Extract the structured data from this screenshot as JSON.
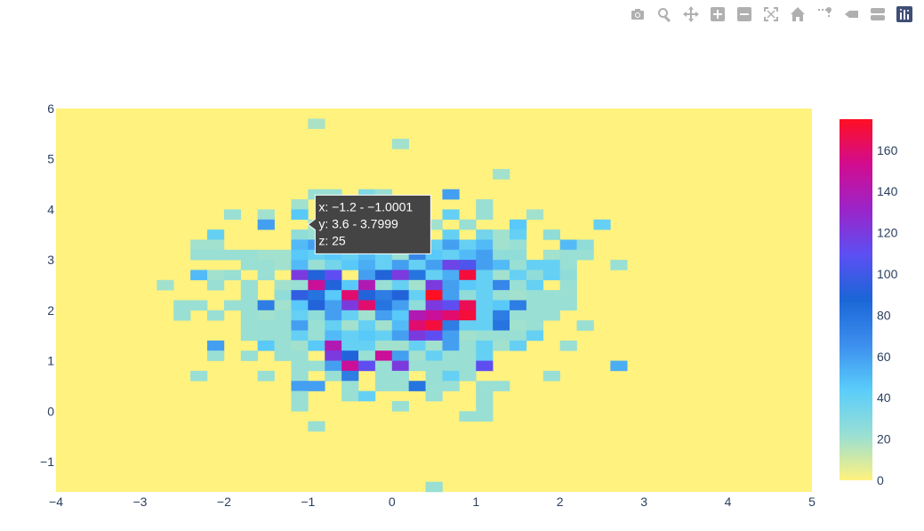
{
  "toolbar": {
    "buttons": [
      {
        "name": "camera-icon",
        "icon": "camera"
      },
      {
        "name": "zoom-icon",
        "icon": "zoom"
      },
      {
        "name": "pan-icon",
        "icon": "pan"
      },
      {
        "name": "zoom-in-icon",
        "icon": "zoom-in"
      },
      {
        "name": "zoom-out-icon",
        "icon": "zoom-out"
      },
      {
        "name": "autoscale-icon",
        "icon": "autoscale"
      },
      {
        "name": "home-icon",
        "icon": "home"
      },
      {
        "name": "spikelines-icon",
        "icon": "spikelines"
      },
      {
        "name": "hover-closest-icon",
        "icon": "hover-closest"
      },
      {
        "name": "hover-compare-icon",
        "icon": "hover-compare"
      },
      {
        "name": "plotly-logo-icon",
        "icon": "plotly-logo"
      }
    ]
  },
  "hover": {
    "x_line": "x: −1.2 - −1.0001",
    "y_line": "y: 3.6 - 3.7999",
    "z_line": "z: 25"
  },
  "chart_data": {
    "type": "heatmap",
    "subtype": "2d-histogram",
    "xlim": [
      -4,
      5
    ],
    "ylim": [
      -1.6,
      6
    ],
    "bin_size": {
      "x": 0.2,
      "y": 0.2
    },
    "x_ticks": [
      "−4",
      "−3",
      "−2",
      "−1",
      "0",
      "1",
      "2",
      "3",
      "4",
      "5"
    ],
    "y_ticks": [
      "−1",
      "0",
      "1",
      "2",
      "3",
      "4",
      "5",
      "6"
    ],
    "grid": false,
    "colorbar": {
      "range": [
        0,
        175
      ],
      "ticks": [
        "0",
        "20",
        "40",
        "60",
        "80",
        "100",
        "120",
        "140",
        "160"
      ],
      "colorscale": [
        "#fff27e",
        "#99dfd4",
        "#5acdfa",
        "#3d8fee",
        "#1a66d7",
        "#5c4ff3",
        "#9b24c8",
        "#d20c90",
        "#fe0f23"
      ]
    },
    "bins": [
      [
        -1.0,
        5.6,
        18
      ],
      [
        0.0,
        5.2,
        20
      ],
      [
        1.2,
        4.6,
        20
      ],
      [
        0.6,
        4.2,
        60
      ],
      [
        -1.0,
        4.2,
        22
      ],
      [
        -0.8,
        4.2,
        22
      ],
      [
        -0.4,
        4.2,
        30
      ],
      [
        -0.2,
        4.2,
        22
      ],
      [
        -1.2,
        4.0,
        20
      ],
      [
        -0.4,
        4.0,
        40
      ],
      [
        1.0,
        4.0,
        22
      ],
      [
        -2.0,
        3.8,
        22
      ],
      [
        -1.6,
        3.8,
        20
      ],
      [
        -1.2,
        3.8,
        45
      ],
      [
        0.6,
        3.8,
        40
      ],
      [
        1.0,
        3.8,
        22
      ],
      [
        1.6,
        3.8,
        20
      ],
      [
        -1.6,
        3.6,
        60
      ],
      [
        -1.0,
        3.6,
        20
      ],
      [
        -0.8,
        3.6,
        35
      ],
      [
        0.0,
        3.6,
        40
      ],
      [
        0.4,
        3.6,
        20
      ],
      [
        0.8,
        3.6,
        22
      ],
      [
        1.4,
        3.6,
        45
      ],
      [
        2.4,
        3.6,
        40
      ],
      [
        -2.2,
        3.4,
        40
      ],
      [
        -1.2,
        3.4,
        25
      ],
      [
        -1.0,
        3.4,
        22
      ],
      [
        -0.8,
        3.4,
        20
      ],
      [
        -0.6,
        3.4,
        20
      ],
      [
        -0.2,
        3.4,
        20
      ],
      [
        0.6,
        3.4,
        40
      ],
      [
        1.0,
        3.4,
        35
      ],
      [
        1.2,
        3.4,
        20
      ],
      [
        1.4,
        3.4,
        40
      ],
      [
        1.8,
        3.4,
        25
      ],
      [
        -2.4,
        3.2,
        20
      ],
      [
        -2.2,
        3.2,
        20
      ],
      [
        -1.2,
        3.2,
        50
      ],
      [
        -1.0,
        3.2,
        60
      ],
      [
        -0.8,
        3.2,
        50
      ],
      [
        -0.6,
        3.2,
        45
      ],
      [
        -0.4,
        3.2,
        70
      ],
      [
        -0.2,
        3.2,
        22
      ],
      [
        0.0,
        3.2,
        20
      ],
      [
        0.2,
        3.2,
        45
      ],
      [
        0.4,
        3.2,
        40
      ],
      [
        0.6,
        3.2,
        60
      ],
      [
        0.8,
        3.2,
        40
      ],
      [
        1.0,
        3.2,
        50
      ],
      [
        1.2,
        3.2,
        20
      ],
      [
        1.4,
        3.2,
        22
      ],
      [
        2.0,
        3.2,
        50
      ],
      [
        2.2,
        3.2,
        25
      ],
      [
        -2.4,
        3.0,
        22
      ],
      [
        -2.2,
        3.0,
        22
      ],
      [
        -2.0,
        3.0,
        22
      ],
      [
        -1.8,
        3.0,
        22
      ],
      [
        -1.6,
        3.0,
        20
      ],
      [
        -1.4,
        3.0,
        20
      ],
      [
        -1.2,
        3.0,
        45
      ],
      [
        -1.0,
        3.0,
        40
      ],
      [
        -0.8,
        3.0,
        45
      ],
      [
        -0.6,
        3.0,
        40
      ],
      [
        -0.4,
        3.0,
        50
      ],
      [
        -0.2,
        3.0,
        40
      ],
      [
        0.0,
        3.0,
        22
      ],
      [
        0.2,
        3.0,
        70
      ],
      [
        0.4,
        3.0,
        45
      ],
      [
        0.6,
        3.0,
        40
      ],
      [
        0.8,
        3.0,
        50
      ],
      [
        1.0,
        3.0,
        60
      ],
      [
        1.2,
        3.0,
        25
      ],
      [
        1.4,
        3.0,
        25
      ],
      [
        1.8,
        3.0,
        20
      ],
      [
        2.0,
        3.0,
        22
      ],
      [
        2.2,
        3.0,
        22
      ],
      [
        -1.8,
        2.8,
        22
      ],
      [
        -1.6,
        2.8,
        22
      ],
      [
        -1.4,
        2.8,
        20
      ],
      [
        -1.2,
        2.8,
        50
      ],
      [
        -1.0,
        2.8,
        22
      ],
      [
        -0.8,
        2.8,
        35
      ],
      [
        -0.6,
        2.8,
        45
      ],
      [
        -0.4,
        2.8,
        55
      ],
      [
        -0.2,
        2.8,
        40
      ],
      [
        0.0,
        2.8,
        60
      ],
      [
        0.2,
        2.8,
        40
      ],
      [
        0.4,
        2.8,
        60
      ],
      [
        0.6,
        2.8,
        115
      ],
      [
        0.8,
        2.8,
        105
      ],
      [
        1.0,
        2.8,
        60
      ],
      [
        1.2,
        2.8,
        50
      ],
      [
        1.4,
        2.8,
        22
      ],
      [
        1.6,
        2.8,
        40
      ],
      [
        1.8,
        2.8,
        40
      ],
      [
        2.0,
        2.8,
        22
      ],
      [
        2.6,
        2.8,
        22
      ],
      [
        -2.4,
        2.6,
        50
      ],
      [
        -2.2,
        2.6,
        20
      ],
      [
        -2.0,
        2.6,
        22
      ],
      [
        -1.6,
        2.6,
        22
      ],
      [
        -1.2,
        2.6,
        120
      ],
      [
        -1.0,
        2.6,
        90
      ],
      [
        -0.8,
        2.6,
        110
      ],
      [
        -0.4,
        2.6,
        60
      ],
      [
        -0.2,
        2.6,
        90
      ],
      [
        0.0,
        2.6,
        120
      ],
      [
        0.2,
        2.6,
        80
      ],
      [
        0.4,
        2.6,
        40
      ],
      [
        0.6,
        2.6,
        55
      ],
      [
        0.8,
        2.6,
        170
      ],
      [
        1.0,
        2.6,
        40
      ],
      [
        1.2,
        2.6,
        20
      ],
      [
        1.4,
        2.6,
        40
      ],
      [
        1.6,
        2.6,
        25
      ],
      [
        1.8,
        2.6,
        40
      ],
      [
        2.0,
        2.6,
        25
      ],
      [
        -2.8,
        2.4,
        20
      ],
      [
        -2.2,
        2.4,
        22
      ],
      [
        -1.8,
        2.4,
        22
      ],
      [
        -1.4,
        2.4,
        20
      ],
      [
        -1.2,
        2.4,
        22
      ],
      [
        -1.0,
        2.4,
        150
      ],
      [
        -0.8,
        2.4,
        90
      ],
      [
        -0.6,
        2.4,
        45
      ],
      [
        -0.4,
        2.4,
        140
      ],
      [
        -0.2,
        2.4,
        22
      ],
      [
        0.0,
        2.4,
        40
      ],
      [
        0.2,
        2.4,
        20
      ],
      [
        0.4,
        2.4,
        120
      ],
      [
        0.6,
        2.4,
        60
      ],
      [
        0.8,
        2.4,
        45
      ],
      [
        1.0,
        2.4,
        40
      ],
      [
        1.2,
        2.4,
        70
      ],
      [
        1.4,
        2.4,
        22
      ],
      [
        1.6,
        2.4,
        40
      ],
      [
        2.0,
        2.4,
        22
      ],
      [
        -1.8,
        2.2,
        22
      ],
      [
        -1.4,
        2.2,
        25
      ],
      [
        -1.2,
        2.2,
        95
      ],
      [
        -1.0,
        2.2,
        80
      ],
      [
        -0.8,
        2.2,
        45
      ],
      [
        -0.6,
        2.2,
        160
      ],
      [
        -0.4,
        2.2,
        90
      ],
      [
        -0.2,
        2.2,
        75
      ],
      [
        0.0,
        2.2,
        90
      ],
      [
        0.2,
        2.2,
        40
      ],
      [
        0.4,
        2.2,
        175
      ],
      [
        0.6,
        2.2,
        60
      ],
      [
        0.8,
        2.2,
        25
      ],
      [
        1.0,
        2.2,
        40
      ],
      [
        1.2,
        2.2,
        22
      ],
      [
        1.4,
        2.2,
        20
      ],
      [
        1.6,
        2.2,
        22
      ],
      [
        1.8,
        2.2,
        22
      ],
      [
        2.0,
        2.2,
        22
      ],
      [
        -2.6,
        2.0,
        22
      ],
      [
        -2.4,
        2.0,
        22
      ],
      [
        -2.0,
        2.0,
        22
      ],
      [
        -1.8,
        2.0,
        22
      ],
      [
        -1.6,
        2.0,
        75
      ],
      [
        -1.4,
        2.0,
        20
      ],
      [
        -1.2,
        2.0,
        45
      ],
      [
        -1.0,
        2.0,
        90
      ],
      [
        -0.8,
        2.0,
        60
      ],
      [
        -0.6,
        2.0,
        120
      ],
      [
        -0.4,
        2.0,
        160
      ],
      [
        -0.2,
        2.0,
        80
      ],
      [
        0.0,
        2.0,
        60
      ],
      [
        0.2,
        2.0,
        25
      ],
      [
        0.4,
        2.0,
        120
      ],
      [
        0.6,
        2.0,
        110
      ],
      [
        0.8,
        2.0,
        165
      ],
      [
        1.0,
        2.0,
        40
      ],
      [
        1.2,
        2.0,
        45
      ],
      [
        1.4,
        2.0,
        75
      ],
      [
        1.6,
        2.0,
        22
      ],
      [
        1.8,
        2.0,
        22
      ],
      [
        2.0,
        2.0,
        22
      ],
      [
        -2.6,
        1.8,
        22
      ],
      [
        -2.2,
        1.8,
        22
      ],
      [
        -1.8,
        1.8,
        22
      ],
      [
        -1.6,
        1.8,
        20
      ],
      [
        -1.4,
        1.8,
        22
      ],
      [
        -1.2,
        1.8,
        40
      ],
      [
        -1.0,
        1.8,
        25
      ],
      [
        -0.8,
        1.8,
        60
      ],
      [
        -0.6,
        1.8,
        40
      ],
      [
        -0.4,
        1.8,
        20
      ],
      [
        -0.2,
        1.8,
        60
      ],
      [
        0.0,
        1.8,
        45
      ],
      [
        0.2,
        1.8,
        140
      ],
      [
        0.4,
        1.8,
        150
      ],
      [
        0.6,
        1.8,
        160
      ],
      [
        0.8,
        1.8,
        170
      ],
      [
        1.0,
        1.8,
        40
      ],
      [
        1.2,
        1.8,
        75
      ],
      [
        1.4,
        1.8,
        22
      ],
      [
        1.6,
        1.8,
        22
      ],
      [
        1.8,
        1.8,
        22
      ],
      [
        -1.8,
        1.6,
        22
      ],
      [
        -1.6,
        1.6,
        22
      ],
      [
        -1.4,
        1.6,
        22
      ],
      [
        -1.2,
        1.6,
        60
      ],
      [
        -1.0,
        1.6,
        22
      ],
      [
        -0.8,
        1.6,
        40
      ],
      [
        -0.6,
        1.6,
        20
      ],
      [
        -0.4,
        1.6,
        40
      ],
      [
        -0.2,
        1.6,
        20
      ],
      [
        0.0,
        1.6,
        50
      ],
      [
        0.2,
        1.6,
        160
      ],
      [
        0.4,
        1.6,
        170
      ],
      [
        0.6,
        1.6,
        75
      ],
      [
        0.8,
        1.6,
        40
      ],
      [
        1.0,
        1.6,
        40
      ],
      [
        1.2,
        1.6,
        80
      ],
      [
        1.4,
        1.6,
        20
      ],
      [
        1.6,
        1.6,
        22
      ],
      [
        2.2,
        1.6,
        22
      ],
      [
        -1.8,
        1.4,
        22
      ],
      [
        -1.6,
        1.4,
        22
      ],
      [
        -1.4,
        1.4,
        22
      ],
      [
        -1.2,
        1.4,
        40
      ],
      [
        -1.0,
        1.4,
        22
      ],
      [
        -0.8,
        1.4,
        50
      ],
      [
        -0.6,
        1.4,
        40
      ],
      [
        -0.4,
        1.4,
        45
      ],
      [
        -0.2,
        1.4,
        40
      ],
      [
        0.0,
        1.4,
        60
      ],
      [
        0.2,
        1.4,
        120
      ],
      [
        0.4,
        1.4,
        110
      ],
      [
        0.6,
        1.4,
        60
      ],
      [
        0.8,
        1.4,
        20
      ],
      [
        1.0,
        1.4,
        22
      ],
      [
        1.2,
        1.4,
        22
      ],
      [
        1.4,
        1.4,
        22
      ],
      [
        1.6,
        1.4,
        40
      ],
      [
        -2.2,
        1.2,
        60
      ],
      [
        -1.6,
        1.2,
        45
      ],
      [
        -1.4,
        1.2,
        22
      ],
      [
        -1.2,
        1.2,
        20
      ],
      [
        -1.0,
        1.2,
        45
      ],
      [
        -0.8,
        1.2,
        140
      ],
      [
        -0.6,
        1.2,
        40
      ],
      [
        -0.4,
        1.2,
        40
      ],
      [
        -0.2,
        1.2,
        20
      ],
      [
        0.0,
        1.2,
        20
      ],
      [
        0.2,
        1.2,
        40
      ],
      [
        0.4,
        1.2,
        20
      ],
      [
        0.6,
        1.2,
        60
      ],
      [
        0.8,
        1.2,
        22
      ],
      [
        1.0,
        1.2,
        40
      ],
      [
        1.2,
        1.2,
        20
      ],
      [
        1.4,
        1.2,
        40
      ],
      [
        2.0,
        1.2,
        22
      ],
      [
        -2.2,
        1.0,
        22
      ],
      [
        -1.8,
        1.0,
        22
      ],
      [
        -1.4,
        1.0,
        22
      ],
      [
        -1.2,
        1.0,
        22
      ],
      [
        -0.8,
        1.0,
        120
      ],
      [
        -0.6,
        1.0,
        90
      ],
      [
        -0.4,
        1.0,
        22
      ],
      [
        -0.2,
        1.0,
        150
      ],
      [
        0.0,
        1.0,
        60
      ],
      [
        0.2,
        1.0,
        20
      ],
      [
        0.4,
        1.0,
        40
      ],
      [
        0.6,
        1.0,
        22
      ],
      [
        0.8,
        1.0,
        22
      ],
      [
        1.0,
        1.0,
        40
      ],
      [
        -1.2,
        0.8,
        22
      ],
      [
        -1.0,
        0.8,
        22
      ],
      [
        -0.8,
        0.8,
        60
      ],
      [
        -0.6,
        0.8,
        150
      ],
      [
        -0.4,
        0.8,
        110
      ],
      [
        -0.2,
        0.8,
        22
      ],
      [
        0.0,
        0.8,
        120
      ],
      [
        0.2,
        0.8,
        22
      ],
      [
        0.4,
        0.8,
        22
      ],
      [
        0.6,
        0.8,
        22
      ],
      [
        0.8,
        0.8,
        22
      ],
      [
        1.0,
        0.8,
        110
      ],
      [
        2.6,
        0.8,
        55
      ],
      [
        -2.4,
        0.6,
        22
      ],
      [
        -1.6,
        0.6,
        22
      ],
      [
        -1.2,
        0.6,
        22
      ],
      [
        -0.8,
        0.6,
        22
      ],
      [
        -0.6,
        0.6,
        75
      ],
      [
        -0.2,
        0.6,
        22
      ],
      [
        0.0,
        0.6,
        22
      ],
      [
        0.4,
        0.6,
        22
      ],
      [
        0.6,
        0.6,
        40
      ],
      [
        0.8,
        0.6,
        22
      ],
      [
        1.8,
        0.6,
        22
      ],
      [
        -1.2,
        0.4,
        60
      ],
      [
        -1.0,
        0.4,
        60
      ],
      [
        -0.6,
        0.4,
        22
      ],
      [
        -0.2,
        0.4,
        22
      ],
      [
        0.0,
        0.4,
        22
      ],
      [
        0.2,
        0.4,
        80
      ],
      [
        0.4,
        0.4,
        22
      ],
      [
        0.6,
        0.4,
        22
      ],
      [
        1.0,
        0.4,
        22
      ],
      [
        1.2,
        0.4,
        22
      ],
      [
        -1.2,
        0.2,
        22
      ],
      [
        -0.6,
        0.2,
        22
      ],
      [
        -0.4,
        0.2,
        40
      ],
      [
        0.4,
        0.2,
        22
      ],
      [
        1.0,
        0.2,
        22
      ],
      [
        -1.2,
        0.0,
        22
      ],
      [
        0.0,
        0.0,
        22
      ],
      [
        1.0,
        0.0,
        22
      ],
      [
        0.8,
        -0.2,
        22
      ],
      [
        1.0,
        -0.2,
        22
      ],
      [
        -1.0,
        -0.4,
        22
      ],
      [
        0.4,
        -1.6,
        22
      ]
    ]
  }
}
